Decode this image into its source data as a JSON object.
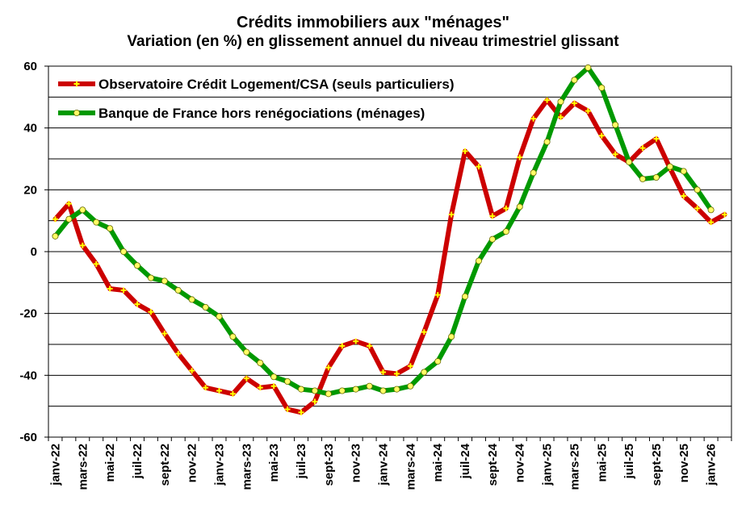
{
  "chart_data": {
    "type": "line",
    "title": "Crédits immobiliers aux \"ménages\"",
    "subtitle": "Variation (en %) en glissement annuel du niveau trimestriel glissant",
    "ylim": [
      -60,
      60
    ],
    "yticks": [
      60,
      40,
      20,
      0,
      -20,
      -40,
      -60
    ],
    "grid": "horizontal",
    "legend_position": "top-left",
    "x": [
      "janv-22",
      "févr-22",
      "mars-22",
      "avr-22",
      "mai-22",
      "juin-22",
      "juil-22",
      "août-22",
      "sept-22",
      "oct-22",
      "nov-22",
      "déc-22",
      "janv-23",
      "févr-23",
      "mars-23",
      "avr-23",
      "mai-23",
      "juin-23",
      "juil-23",
      "août-23",
      "sept-23",
      "oct-23",
      "nov-23",
      "déc-23",
      "janv-24",
      "févr-24",
      "mars-24",
      "avr-24",
      "mai-24",
      "juin-24",
      "juil-24",
      "août-24",
      "sept-24",
      "oct-24",
      "nov-24",
      "déc-24",
      "janv-25",
      "févr-25",
      "mars-25",
      "avr-25",
      "mai-25",
      "juin-25",
      "juil-25",
      "août-25",
      "sept-25",
      "oct-25",
      "nov-25",
      "déc-25",
      "janv-26",
      "févr-26"
    ],
    "xtick_labels": [
      "janv-22",
      "mars-22",
      "mai-22",
      "juil-22",
      "sept-22",
      "nov-22",
      "janv-23",
      "mars-23",
      "mai-23",
      "juil-23",
      "sept-23",
      "nov-23",
      "janv-24",
      "mars-24",
      "mai-24",
      "juil-24",
      "sept-24",
      "nov-24",
      "janv-25",
      "mars-25",
      "mai-25",
      "juil-25",
      "sept-25",
      "nov-25",
      "janv-26"
    ],
    "series": [
      {
        "name": "Observatoire Crédit Logement/CSA (seuls particuliers)",
        "color": "#cc0000",
        "marker_color": "#ffff00",
        "marker": "cross",
        "values": [
          10.5,
          15.5,
          2,
          -4,
          -12,
          -12.5,
          -17,
          -19.5,
          -26.5,
          -33,
          -38.5,
          -44,
          -45,
          -46,
          -41,
          -44,
          -43.5,
          -51,
          -52,
          -48.5,
          -37.5,
          -30.5,
          -29,
          -30.5,
          -39,
          -39.5,
          -37,
          -26,
          -14,
          12,
          32.5,
          27.5,
          11.5,
          14,
          30.5,
          43,
          49,
          43.5,
          48,
          45.5,
          37.5,
          31.5,
          29,
          33.5,
          36.5,
          27,
          18,
          14,
          9.5,
          12
        ]
      },
      {
        "name": "Banque de France hors renégociations (ménages)",
        "color": "#009900",
        "marker_color": "#ffff66",
        "marker": "circle",
        "values": [
          5,
          10.5,
          13.5,
          9.5,
          7.5,
          0,
          -4.5,
          -8.5,
          -9.5,
          -12.5,
          -15.5,
          -18,
          -21,
          -27.5,
          -32.5,
          -36,
          -40.5,
          -42,
          -44.5,
          -45,
          -46,
          -45,
          -44.5,
          -43.5,
          -45,
          -44.5,
          -43.5,
          -39,
          -35.5,
          -27.5,
          -14.5,
          -3,
          4,
          6.5,
          14.5,
          25.5,
          35.5,
          48.5,
          55.5,
          59.5,
          53,
          41,
          29,
          23.5,
          24,
          27.5,
          26,
          20,
          13.5,
          null
        ]
      }
    ]
  }
}
